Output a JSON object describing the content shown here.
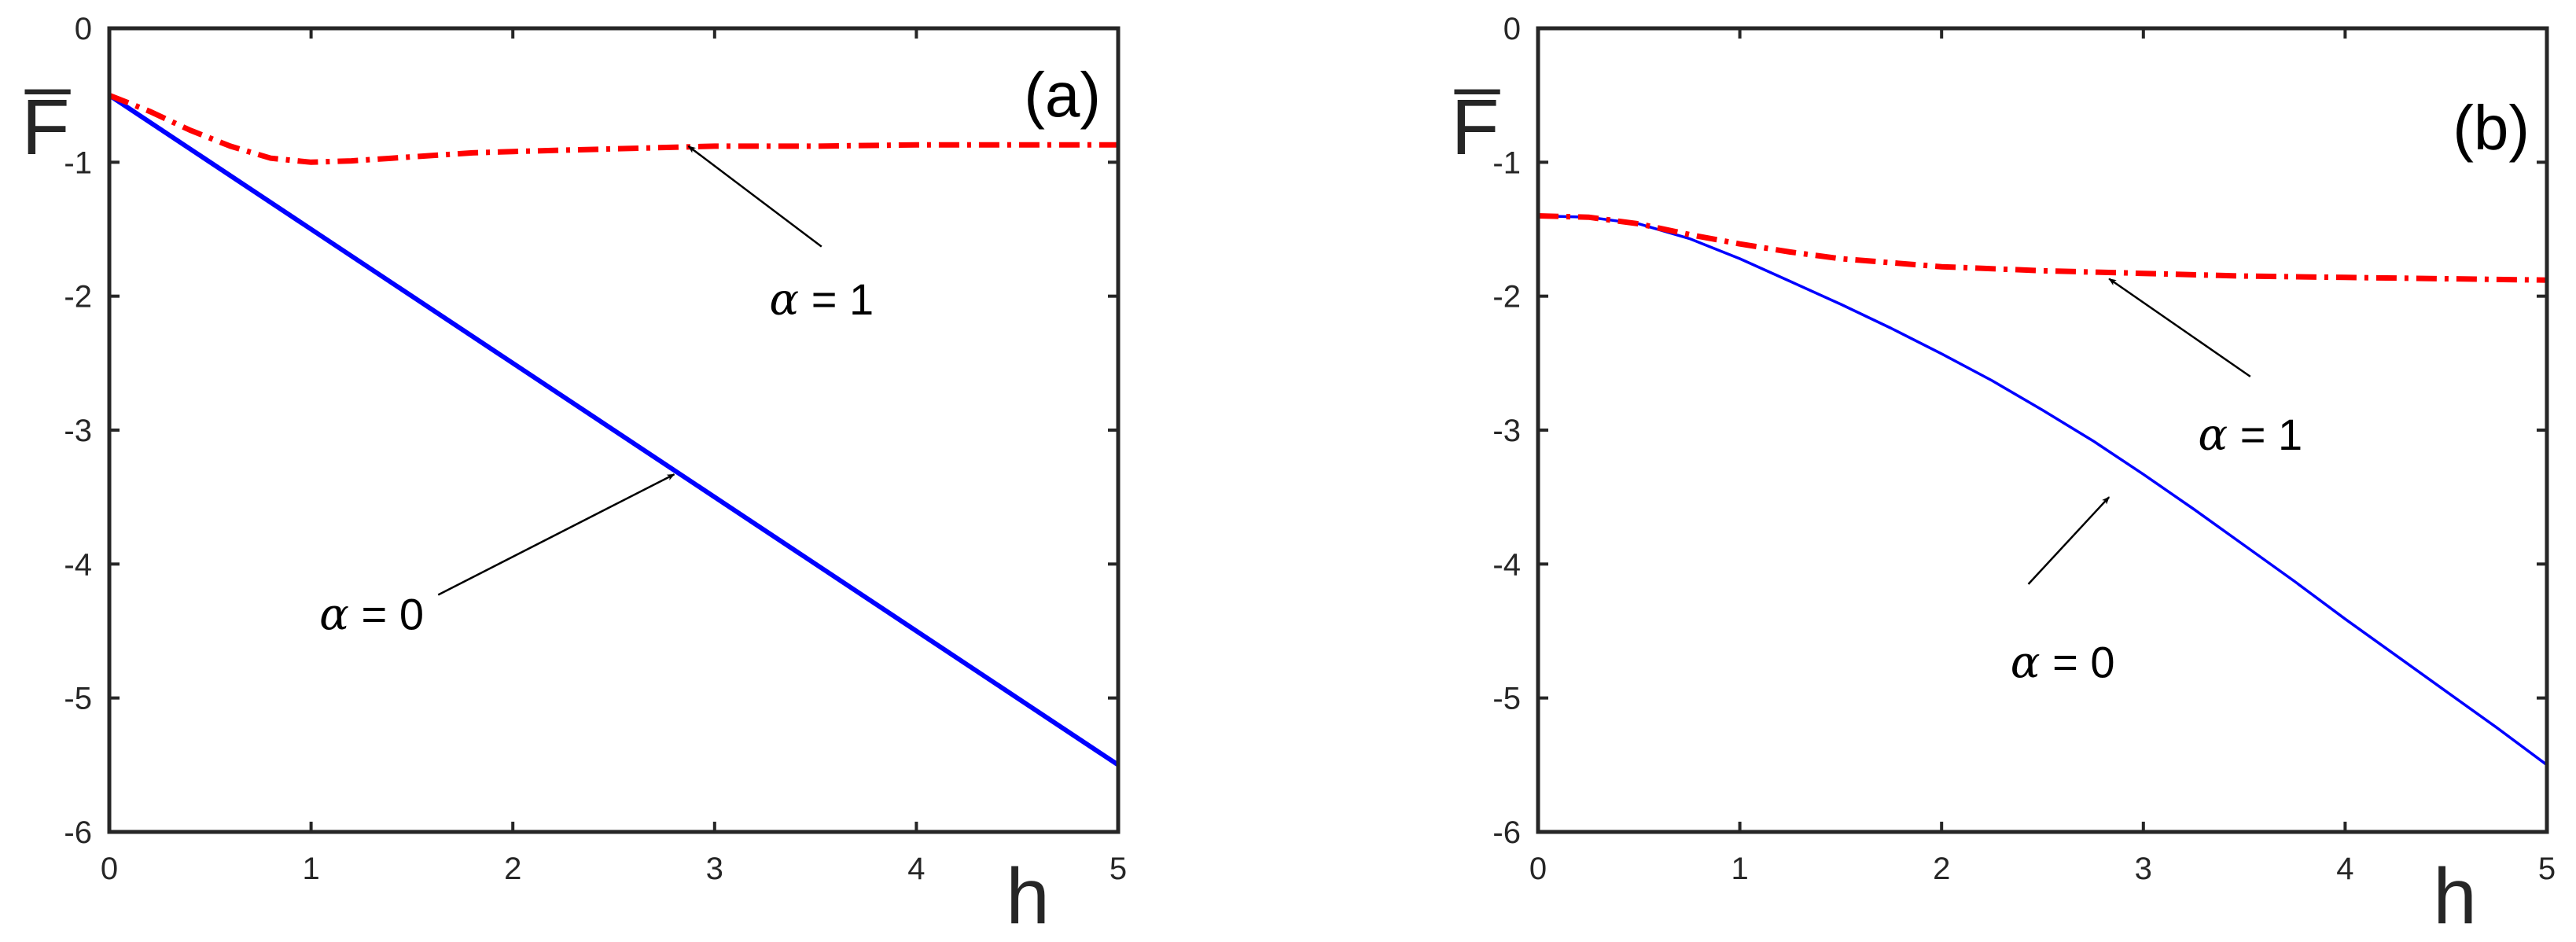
{
  "chart_data": [
    {
      "type": "line",
      "panel_label": "(a)",
      "xlabel": "h",
      "ylabel": "F̅",
      "xlim": [
        0,
        5
      ],
      "ylim": [
        -6,
        0
      ],
      "xticks": [
        "0",
        "1",
        "2",
        "3",
        "4",
        "5"
      ],
      "yticks": [
        "0",
        "-1",
        "-2",
        "-3",
        "-4",
        "-5",
        "-6"
      ],
      "grid": false,
      "series": [
        {
          "name": "α = 0",
          "color": "#0000ff",
          "style": "solid",
          "x": [
            0,
            5
          ],
          "y": [
            -0.5,
            -5.5
          ]
        },
        {
          "name": "α = 1",
          "color": "#ff0000",
          "style": "dashdot",
          "x": [
            0,
            0.2,
            0.4,
            0.6,
            0.8,
            1.0,
            1.2,
            1.4,
            1.6,
            1.8,
            2.0,
            2.5,
            3.0,
            3.5,
            4.0,
            4.5,
            5.0
          ],
          "y": [
            -0.5,
            -0.62,
            -0.76,
            -0.88,
            -0.97,
            -1.0,
            -0.99,
            -0.97,
            -0.95,
            -0.93,
            -0.92,
            -0.9,
            -0.88,
            -0.88,
            -0.87,
            -0.87,
            -0.87
          ]
        }
      ],
      "annotations": [
        {
          "greek": "α",
          "text": " = 1",
          "label_at": [
            3.53,
            -2.02
          ],
          "arrow_tail": [
            3.53,
            -1.63
          ],
          "arrow_head": [
            2.87,
            -0.88
          ]
        },
        {
          "greek": "α",
          "text": " = 0",
          "label_at": [
            1.3,
            -4.37
          ],
          "arrow_tail": [
            1.63,
            -4.23
          ],
          "arrow_head": [
            2.8,
            -3.33
          ]
        }
      ]
    },
    {
      "type": "line",
      "panel_label": "(b)",
      "xlabel": "h",
      "ylabel": "F̅",
      "xlim": [
        0,
        5
      ],
      "ylim": [
        -6,
        0
      ],
      "xticks": [
        "0",
        "1",
        "2",
        "3",
        "4",
        "5"
      ],
      "yticks": [
        "0",
        "-1",
        "-2",
        "-3",
        "-4",
        "-5",
        "-6"
      ],
      "grid": false,
      "series": [
        {
          "name": "α = 0",
          "color": "#0000ff",
          "style": "solid",
          "x": [
            0,
            0.25,
            0.5,
            0.75,
            1.0,
            1.25,
            1.5,
            1.75,
            2.0,
            2.25,
            2.5,
            2.75,
            3.0,
            3.25,
            3.5,
            3.75,
            4.0,
            4.25,
            4.5,
            4.75,
            5.0
          ],
          "y": [
            -1.4,
            -1.41,
            -1.46,
            -1.57,
            -1.72,
            -1.89,
            -2.06,
            -2.24,
            -2.43,
            -2.63,
            -2.85,
            -3.08,
            -3.33,
            -3.59,
            -3.86,
            -4.13,
            -4.41,
            -4.68,
            -4.95,
            -5.22,
            -5.5
          ]
        },
        {
          "name": "α = 1",
          "color": "#ff0000",
          "style": "dashdot",
          "x": [
            0,
            0.25,
            0.5,
            0.75,
            1.0,
            1.25,
            1.5,
            2.0,
            2.5,
            3.0,
            3.5,
            4.0,
            4.5,
            5.0
          ],
          "y": [
            -1.4,
            -1.41,
            -1.46,
            -1.54,
            -1.61,
            -1.67,
            -1.72,
            -1.78,
            -1.81,
            -1.83,
            -1.85,
            -1.86,
            -1.87,
            -1.88
          ]
        }
      ],
      "annotations": [
        {
          "greek": "α",
          "text": " = 1",
          "label_at": [
            3.53,
            -3.03
          ],
          "arrow_tail": [
            3.53,
            -2.6
          ],
          "arrow_head": [
            2.83,
            -1.87
          ]
        },
        {
          "greek": "α",
          "text": " = 0",
          "label_at": [
            2.6,
            -4.73
          ],
          "arrow_tail": [
            2.43,
            -4.15
          ],
          "arrow_head": [
            2.83,
            -3.5
          ]
        }
      ]
    }
  ]
}
